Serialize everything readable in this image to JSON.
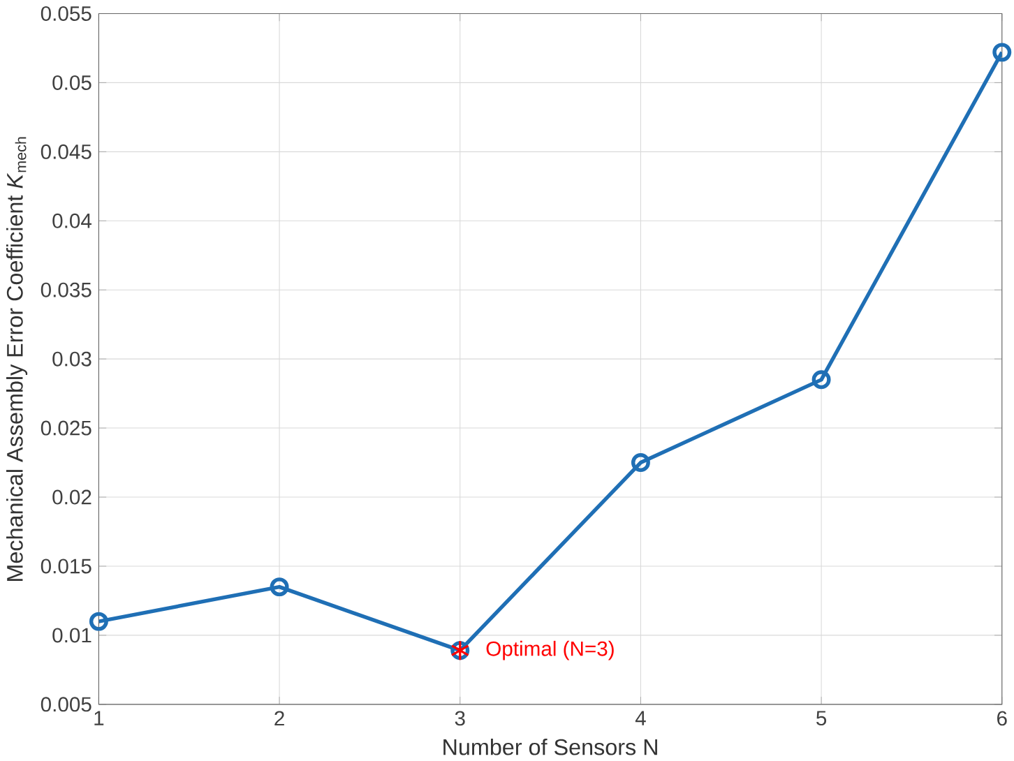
{
  "chart_data": {
    "type": "line",
    "xlabel": "Number of Sensors N",
    "ylabel": "Mechanical Assembly Error Coefficient  *K*$_{mech}$",
    "x": [
      1,
      2,
      3,
      4,
      5,
      6
    ],
    "series": [
      {
        "color": "#1f6fb5",
        "values": [
          0.011,
          0.0135,
          0.0089,
          0.0225,
          0.0285,
          0.0522
        ],
        "marker": "circle"
      },
      {
        "type": "scatter",
        "color": "#ff0000",
        "values": [
          null,
          null,
          0.0089,
          null,
          null,
          null
        ],
        "marker": "cross"
      }
    ],
    "annotations": [
      {
        "text": "Optimal (N=3)",
        "x": 3,
        "y": 0.0089
      }
    ],
    "xlim": [
      1,
      6
    ],
    "ylim": [
      0.005,
      0.055
    ],
    "xticks": [
      1,
      2,
      3,
      4,
      5,
      6
    ],
    "yticks": [
      0.005,
      0.01,
      0.015,
      0.02,
      0.025,
      0.03,
      0.035,
      0.04,
      0.045,
      0.05,
      0.055
    ],
    "grid": true,
    "line_style": "solid"
  }
}
